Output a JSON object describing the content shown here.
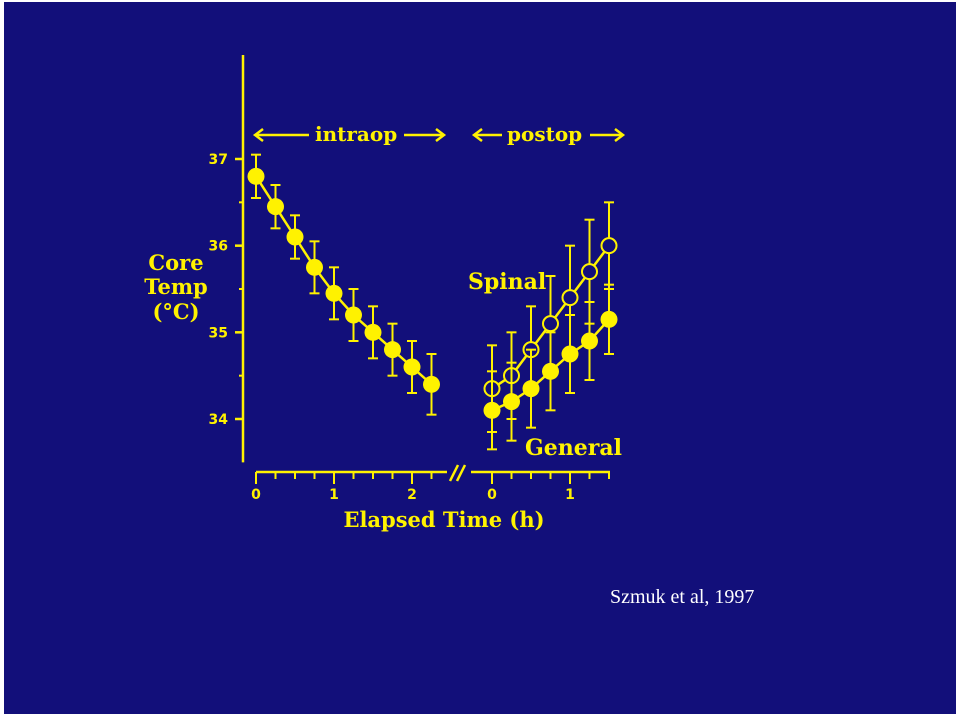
{
  "chart_data": {
    "type": "scatter",
    "colors": {
      "background": "#120f7a",
      "ink": "#fff200",
      "citation": "#ffffff"
    },
    "y_axis": {
      "title_lines": [
        "Core",
        "Temp",
        "(°C)"
      ],
      "ticks": [
        "37",
        "36",
        "35",
        "34"
      ],
      "tick_values": [
        37,
        36,
        35,
        34
      ],
      "range": [
        33.5,
        38.2
      ]
    },
    "x_axis": {
      "title": "Elapsed Time (h)",
      "intraop_ticks": [
        "0",
        "1",
        "2"
      ],
      "intraop_tick_values": [
        0,
        1,
        2
      ],
      "postop_ticks": [
        "0",
        "1"
      ],
      "postop_tick_values": [
        0,
        1
      ],
      "axis_break": "//"
    },
    "period_labels": {
      "intraop": "intraop",
      "postop": "postop"
    },
    "series": [
      {
        "name": "intraop",
        "marker": "filled",
        "period": "intraop",
        "x": [
          0,
          0.25,
          0.5,
          0.75,
          1.0,
          1.25,
          1.5,
          1.75,
          2.0,
          2.25
        ],
        "y": [
          36.8,
          36.45,
          36.1,
          35.75,
          35.45,
          35.2,
          35.0,
          34.8,
          34.6,
          34.4
        ],
        "err": [
          0.25,
          0.25,
          0.25,
          0.3,
          0.3,
          0.3,
          0.3,
          0.3,
          0.3,
          0.35
        ]
      },
      {
        "name": "Spinal",
        "marker": "open",
        "period": "postop",
        "x": [
          0,
          0.25,
          0.5,
          0.75,
          1.0,
          1.25,
          1.5
        ],
        "y": [
          34.35,
          34.5,
          34.8,
          35.1,
          35.4,
          35.7,
          36.0
        ],
        "err": [
          0.5,
          0.5,
          0.5,
          0.55,
          0.6,
          0.6,
          0.5
        ]
      },
      {
        "name": "General",
        "marker": "filled",
        "period": "postop",
        "x": [
          0,
          0.25,
          0.5,
          0.75,
          1.0,
          1.25,
          1.5
        ],
        "y": [
          34.1,
          34.2,
          34.35,
          34.55,
          34.75,
          34.9,
          35.15
        ],
        "err": [
          0.45,
          0.45,
          0.45,
          0.45,
          0.45,
          0.45,
          0.4
        ]
      }
    ]
  },
  "citation": "Szmuk et al, 1997"
}
